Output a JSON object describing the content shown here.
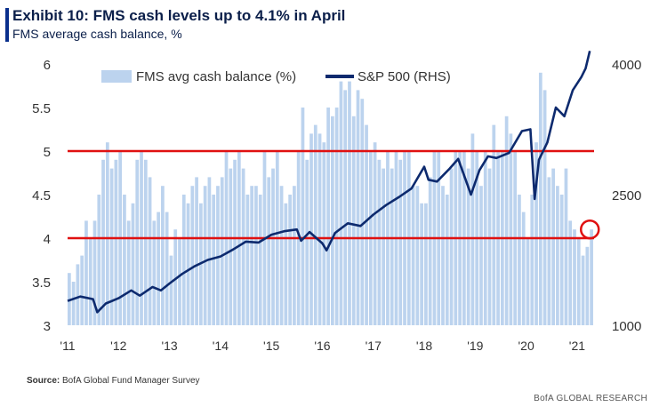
{
  "header": {
    "title": "Exhibit 10: FMS cash levels up to 4.1% in April",
    "subtitle": "FMS average cash balance, %"
  },
  "footer": {
    "source_label": "Source:",
    "source_text": "BofA Global Fund Manager Survey",
    "brand": "BofA GLOBAL RESEARCH"
  },
  "colors": {
    "bars": "#bcd3ee",
    "line": "#0d2a6e",
    "threshold": "#e01010",
    "marker": "#e01010"
  },
  "chart_data": {
    "type": "bar+line",
    "x_tick_labels": [
      "'11",
      "'12",
      "'13",
      "'14",
      "'15",
      "'16",
      "'17",
      "'18",
      "'19",
      "'20",
      "'21"
    ],
    "y_left": {
      "ticks": [
        3,
        3.5,
        4,
        4.5,
        5,
        5.5,
        6
      ],
      "tick_labels": [
        "3",
        "3.5",
        "4",
        "4.5",
        "5",
        "5.5",
        "6"
      ],
      "ylim": [
        3,
        6
      ]
    },
    "y_right": {
      "ticks": [
        1000,
        2500,
        4000
      ],
      "tick_labels": [
        "1000",
        "2500",
        "4000"
      ],
      "ylim": [
        1000,
        4000
      ]
    },
    "legend": {
      "placement": "top",
      "items": [
        "FMS avg cash balance (%)",
        "S&P 500 (RHS)"
      ]
    },
    "reference_lines": [
      5.0,
      4.0
    ],
    "highlight_point": {
      "date": "2021-04",
      "cash": 4.1
    },
    "series": [
      {
        "name": "FMS avg cash balance (%)",
        "axis": "left",
        "style": "bar",
        "dates": [
          "2011-01",
          "2011-02",
          "2011-03",
          "2011-04",
          "2011-05",
          "2011-06",
          "2011-07",
          "2011-08",
          "2011-09",
          "2011-10",
          "2011-11",
          "2011-12",
          "2012-01",
          "2012-02",
          "2012-03",
          "2012-04",
          "2012-05",
          "2012-06",
          "2012-07",
          "2012-08",
          "2012-09",
          "2012-10",
          "2012-11",
          "2012-12",
          "2013-01",
          "2013-02",
          "2013-03",
          "2013-04",
          "2013-05",
          "2013-06",
          "2013-07",
          "2013-08",
          "2013-09",
          "2013-10",
          "2013-11",
          "2013-12",
          "2014-01",
          "2014-02",
          "2014-03",
          "2014-04",
          "2014-05",
          "2014-06",
          "2014-07",
          "2014-08",
          "2014-09",
          "2014-10",
          "2014-11",
          "2014-12",
          "2015-01",
          "2015-02",
          "2015-03",
          "2015-04",
          "2015-05",
          "2015-06",
          "2015-07",
          "2015-08",
          "2015-09",
          "2015-10",
          "2015-11",
          "2015-12",
          "2016-01",
          "2016-02",
          "2016-03",
          "2016-04",
          "2016-05",
          "2016-06",
          "2016-07",
          "2016-08",
          "2016-09",
          "2016-10",
          "2016-11",
          "2016-12",
          "2017-01",
          "2017-02",
          "2017-03",
          "2017-04",
          "2017-05",
          "2017-06",
          "2017-07",
          "2017-08",
          "2017-09",
          "2017-10",
          "2017-11",
          "2017-12",
          "2018-01",
          "2018-02",
          "2018-03",
          "2018-04",
          "2018-05",
          "2018-06",
          "2018-07",
          "2018-08",
          "2018-09",
          "2018-10",
          "2018-11",
          "2018-12",
          "2019-01",
          "2019-02",
          "2019-03",
          "2019-04",
          "2019-05",
          "2019-06",
          "2019-07",
          "2019-08",
          "2019-09",
          "2019-10",
          "2019-11",
          "2019-12",
          "2020-01",
          "2020-02",
          "2020-03",
          "2020-04",
          "2020-05",
          "2020-06",
          "2020-07",
          "2020-08",
          "2020-09",
          "2020-10",
          "2020-11",
          "2020-12",
          "2021-01",
          "2021-02",
          "2021-03",
          "2021-04"
        ],
        "values": [
          3.6,
          3.5,
          3.7,
          3.8,
          4.2,
          4.0,
          4.2,
          4.5,
          4.9,
          5.1,
          4.8,
          4.9,
          5.0,
          4.5,
          4.2,
          4.4,
          4.9,
          5.0,
          4.9,
          4.7,
          4.2,
          4.3,
          4.6,
          4.3,
          3.8,
          4.1,
          4.0,
          4.5,
          4.4,
          4.6,
          4.7,
          4.4,
          4.6,
          4.7,
          4.5,
          4.6,
          4.7,
          5.0,
          4.8,
          4.9,
          5.0,
          4.8,
          4.5,
          4.6,
          4.6,
          4.5,
          5.0,
          4.7,
          4.8,
          5.0,
          4.6,
          4.4,
          4.5,
          4.6,
          5.0,
          5.5,
          4.9,
          5.2,
          5.3,
          5.2,
          5.1,
          5.5,
          5.4,
          5.5,
          5.8,
          5.7,
          5.8,
          5.4,
          5.7,
          5.6,
          5.3,
          5.0,
          5.1,
          4.9,
          4.8,
          5.0,
          4.8,
          5.0,
          4.9,
          5.0,
          5.0,
          4.6,
          4.6,
          4.4,
          4.4,
          4.7,
          5.0,
          5.0,
          4.6,
          4.5,
          4.8,
          5.0,
          5.0,
          5.0,
          4.8,
          5.2,
          5.0,
          4.6,
          5.0,
          4.8,
          5.3,
          5.0,
          5.0,
          5.4,
          5.2,
          5.0,
          4.5,
          4.3,
          4.0,
          4.5,
          5.1,
          5.9,
          5.7,
          4.7,
          4.8,
          4.6,
          4.5,
          4.8,
          4.2,
          4.1,
          4.0,
          3.8,
          3.9,
          4.1
        ]
      },
      {
        "name": "S&P 500 (RHS)",
        "axis": "right",
        "style": "line",
        "dates": [
          "2011-01",
          "2011-04",
          "2011-07",
          "2011-08",
          "2011-10",
          "2012-01",
          "2012-04",
          "2012-06",
          "2012-09",
          "2012-11",
          "2013-01",
          "2013-04",
          "2013-07",
          "2013-10",
          "2014-01",
          "2014-04",
          "2014-07",
          "2014-10",
          "2015-01",
          "2015-04",
          "2015-07",
          "2015-08",
          "2015-10",
          "2016-01",
          "2016-02",
          "2016-04",
          "2016-07",
          "2016-10",
          "2017-01",
          "2017-04",
          "2017-07",
          "2017-10",
          "2018-01",
          "2018-02",
          "2018-04",
          "2018-07",
          "2018-09",
          "2018-12",
          "2019-02",
          "2019-04",
          "2019-06",
          "2019-09",
          "2019-12",
          "2020-02",
          "2020-03",
          "2020-04",
          "2020-06",
          "2020-08",
          "2020-10",
          "2020-12",
          "2021-02",
          "2021-03",
          "2021-04"
        ],
        "values": [
          1280,
          1330,
          1300,
          1150,
          1250,
          1310,
          1400,
          1340,
          1440,
          1400,
          1480,
          1590,
          1680,
          1750,
          1790,
          1870,
          1960,
          1950,
          2040,
          2080,
          2100,
          1970,
          2070,
          1940,
          1860,
          2060,
          2170,
          2140,
          2270,
          2380,
          2470,
          2570,
          2820,
          2670,
          2650,
          2800,
          2910,
          2500,
          2780,
          2940,
          2920,
          2980,
          3230,
          3250,
          2450,
          2900,
          3100,
          3500,
          3400,
          3700,
          3850,
          3950,
          4150
        ]
      }
    ]
  }
}
